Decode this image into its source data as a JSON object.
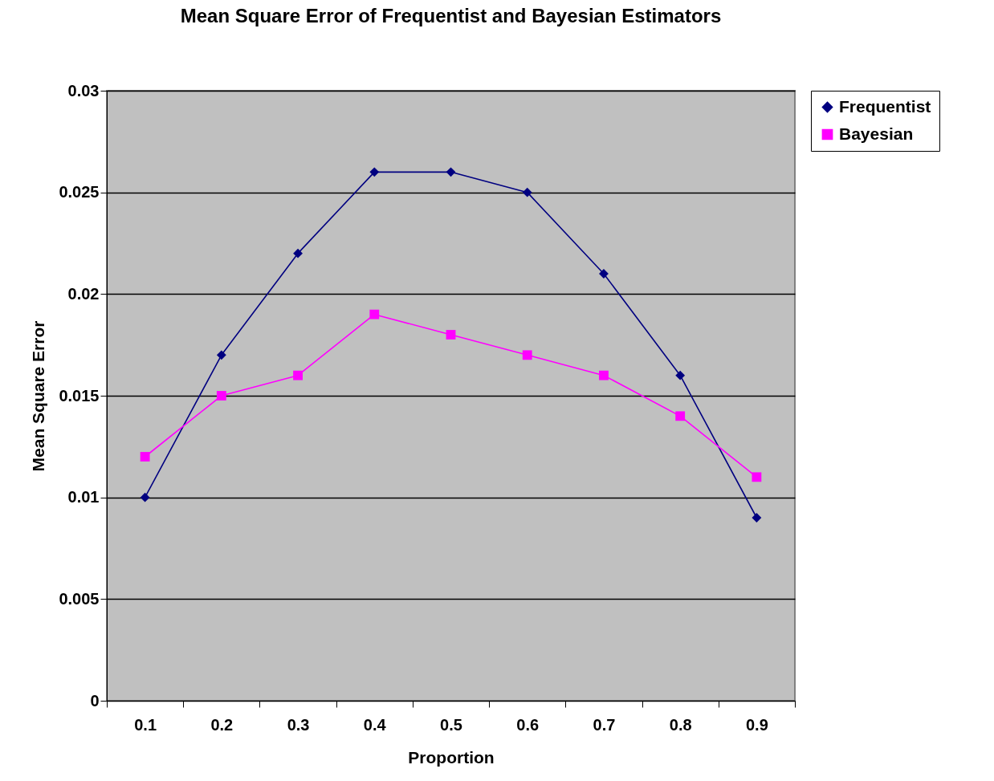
{
  "chart_data": {
    "type": "line",
    "title": "Mean Square Error of Frequentist and Bayesian Estimators",
    "xlabel": "Proportion",
    "ylabel": "Mean Square Error",
    "categories": [
      "0.1",
      "0.2",
      "0.3",
      "0.4",
      "0.5",
      "0.6",
      "0.7",
      "0.8",
      "0.9"
    ],
    "series": [
      {
        "name": "Frequentist",
        "color": "#000080",
        "marker": "diamond",
        "values": [
          0.01,
          0.017,
          0.022,
          0.026,
          0.026,
          0.025,
          0.021,
          0.016,
          0.009
        ]
      },
      {
        "name": "Bayesian",
        "color": "#ff00ff",
        "marker": "square",
        "values": [
          0.012,
          0.015,
          0.016,
          0.019,
          0.018,
          0.017,
          0.016,
          0.014,
          0.011
        ]
      }
    ],
    "ylim": [
      0,
      0.03
    ],
    "yticks": [
      0,
      0.005,
      0.01,
      0.015,
      0.02,
      0.025,
      0.03
    ],
    "grid": "y",
    "legend": "right",
    "line_style": "solid"
  }
}
